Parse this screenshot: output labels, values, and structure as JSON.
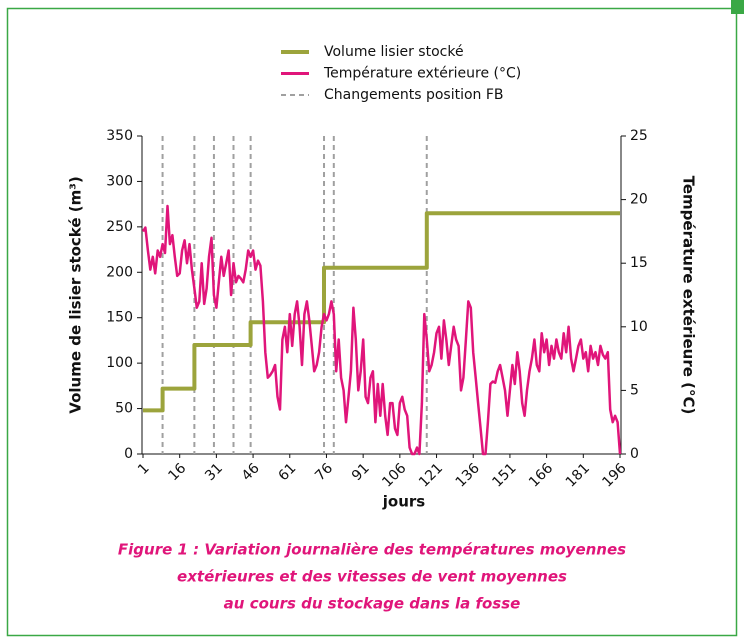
{
  "chart_data": {
    "type": "line",
    "legend_position": "top",
    "y_label": "Volume de lisier stocké (m³)",
    "y2_label": "Température extérieure (°C)",
    "x_label": "jours",
    "caption": [
      "Figure 1 : Variation journalière des températures moyennes",
      "extérieures et des vitesses de vent moyennes",
      "au cours du stockage dans la fosse"
    ],
    "xlim": [
      1,
      196
    ],
    "xticks": [
      1,
      16,
      31,
      46,
      61,
      76,
      91,
      106,
      121,
      136,
      151,
      166,
      181,
      196
    ],
    "ylim": [
      0,
      350
    ],
    "yticks": [
      0,
      50,
      100,
      150,
      200,
      250,
      300,
      350
    ],
    "y2lim": [
      0,
      25
    ],
    "y2ticks": [
      0,
      5,
      10,
      15,
      20,
      25
    ],
    "series": [
      {
        "name": "Volume lisier stocké",
        "color": "#9ca43c",
        "axis": "y",
        "x": [
          1,
          9,
          9,
          22,
          22,
          45,
          45,
          75,
          75,
          117,
          117,
          196
        ],
        "values": [
          48,
          48,
          72,
          72,
          120,
          120,
          145,
          145,
          205,
          205,
          265,
          265
        ]
      },
      {
        "name": "Température extérieure (°C)",
        "color": "#e0157a",
        "axis": "y2",
        "x": [
          1,
          2,
          3,
          4,
          5,
          6,
          7,
          8,
          9,
          10,
          11,
          12,
          13,
          14,
          15,
          16,
          17,
          18,
          19,
          20,
          21,
          22,
          23,
          24,
          25,
          26,
          27,
          28,
          29,
          30,
          31,
          32,
          33,
          34,
          35,
          36,
          37,
          38,
          39,
          40,
          41,
          42,
          43,
          44,
          45,
          46,
          47,
          48,
          49,
          50,
          51,
          52,
          53,
          54,
          55,
          56,
          57,
          58,
          59,
          60,
          61,
          62,
          63,
          64,
          65,
          66,
          67,
          68,
          69,
          70,
          71,
          72,
          73,
          74,
          75,
          76,
          77,
          78,
          79,
          80,
          81,
          82,
          83,
          84,
          85,
          86,
          87,
          88,
          89,
          90,
          91,
          92,
          93,
          94,
          95,
          96,
          97,
          98,
          99,
          100,
          101,
          102,
          103,
          104,
          105,
          106,
          107,
          108,
          109,
          110,
          111,
          112,
          113,
          114,
          115,
          116,
          117,
          118,
          119,
          120,
          121,
          122,
          123,
          124,
          125,
          126,
          127,
          128,
          129,
          130,
          131,
          132,
          133,
          134,
          135,
          136,
          137,
          138,
          139,
          140,
          141,
          142,
          143,
          144,
          145,
          146,
          147,
          148,
          149,
          150,
          151,
          152,
          153,
          154,
          155,
          156,
          157,
          158,
          159,
          160,
          161,
          162,
          163,
          164,
          165,
          166,
          167,
          168,
          169,
          170,
          171,
          172,
          173,
          174,
          175,
          176,
          177,
          178,
          179,
          180,
          181,
          182,
          183,
          184,
          185,
          186,
          187,
          188,
          189,
          190,
          191,
          192,
          193,
          194,
          195,
          196
        ],
        "values": [
          17.5,
          17.8,
          16,
          14.5,
          15.5,
          14.2,
          16,
          15.5,
          16.5,
          15.8,
          19.5,
          16.5,
          17.2,
          15.5,
          14,
          14.2,
          16,
          16.8,
          15,
          16.5,
          14.5,
          13,
          11.5,
          12,
          15,
          11.8,
          13,
          15.5,
          17,
          12.5,
          11.5,
          13.5,
          15.5,
          14,
          15,
          16,
          12.5,
          15,
          13.5,
          14,
          13.8,
          13.5,
          14.5,
          16,
          15.5,
          16,
          14.5,
          15.2,
          14.8,
          12,
          8,
          6,
          6.2,
          6.5,
          7,
          4.5,
          3.5,
          9,
          10,
          8,
          11,
          8.5,
          11,
          12,
          10,
          7,
          11,
          12,
          10.5,
          8.5,
          6.5,
          7,
          8,
          10,
          11,
          10.5,
          11,
          12,
          11,
          6.5,
          9,
          6,
          5,
          2.5,
          4.5,
          6.5,
          11.5,
          9,
          5,
          6.5,
          9,
          4.5,
          4,
          6,
          6.5,
          2.5,
          5.5,
          3,
          5.5,
          3,
          1.5,
          4,
          4,
          2,
          1.5,
          4,
          4.5,
          3.5,
          3,
          0.5,
          0,
          0,
          0.5,
          0,
          4,
          11,
          9,
          6.5,
          7,
          8,
          9.5,
          10,
          7.5,
          10.5,
          9,
          7,
          8.5,
          10,
          9,
          8.5,
          5,
          6,
          9,
          12,
          11.5,
          8,
          6,
          4,
          2,
          0,
          0,
          2.5,
          5.5,
          5.7,
          5.6,
          6.5,
          7,
          6,
          5,
          3,
          5,
          7,
          5.5,
          8,
          6.5,
          4,
          3,
          5,
          6.5,
          7.5,
          9,
          7,
          6.5,
          9.5,
          8,
          9,
          7,
          8.5,
          7.5,
          9,
          8,
          7.5,
          9.5,
          8,
          10,
          7.5,
          6.5,
          7.5,
          8.5,
          9,
          7.5,
          8,
          6.5,
          8.5,
          7.5,
          8,
          7,
          8.5,
          7.8,
          7.5,
          8,
          3.5,
          2.5,
          3,
          2.5,
          0
        ]
      }
    ],
    "markers": {
      "name": "Changements position FB",
      "color": "#a0a0a0",
      "x": [
        9,
        22,
        30,
        38,
        45,
        75,
        79,
        117
      ]
    }
  }
}
